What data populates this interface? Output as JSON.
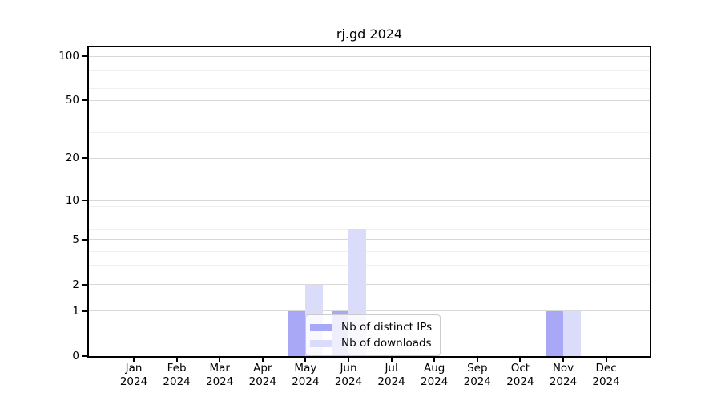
{
  "title": "rj.gd 2024",
  "chart_data": {
    "type": "bar",
    "title": "rj.gd 2024",
    "x_categories": [
      "Jan",
      "Feb",
      "Mar",
      "Apr",
      "May",
      "Jun",
      "Jul",
      "Aug",
      "Sep",
      "Oct",
      "Nov",
      "Dec"
    ],
    "x_year": "2024",
    "series": [
      {
        "name": "Nb of distinct IPs",
        "color": "#a8a8f6",
        "values": [
          0,
          0,
          0,
          0,
          1,
          1,
          0,
          0,
          0,
          0,
          1,
          0
        ]
      },
      {
        "name": "Nb of downloads",
        "color": "#dbdbfa",
        "values": [
          0,
          0,
          0,
          0,
          2,
          6,
          0,
          0,
          0,
          0,
          1,
          0
        ]
      }
    ],
    "y_scale": "log1p",
    "y_ticks": [
      100,
      50,
      20,
      10,
      5,
      2,
      1,
      0
    ],
    "y_minor_gridlines": [
      3,
      4,
      6,
      7,
      8,
      9,
      30,
      40,
      60,
      70,
      80,
      90
    ],
    "ylim": [
      0,
      115
    ],
    "grid": "both",
    "legend_position": "lower center"
  },
  "colors": {
    "distinct_ips": "#a8a8f6",
    "downloads": "#dbdbfa",
    "grid_major": "#d8d8d8",
    "grid_minor": "#f0f0f0",
    "spine": "#000000"
  }
}
